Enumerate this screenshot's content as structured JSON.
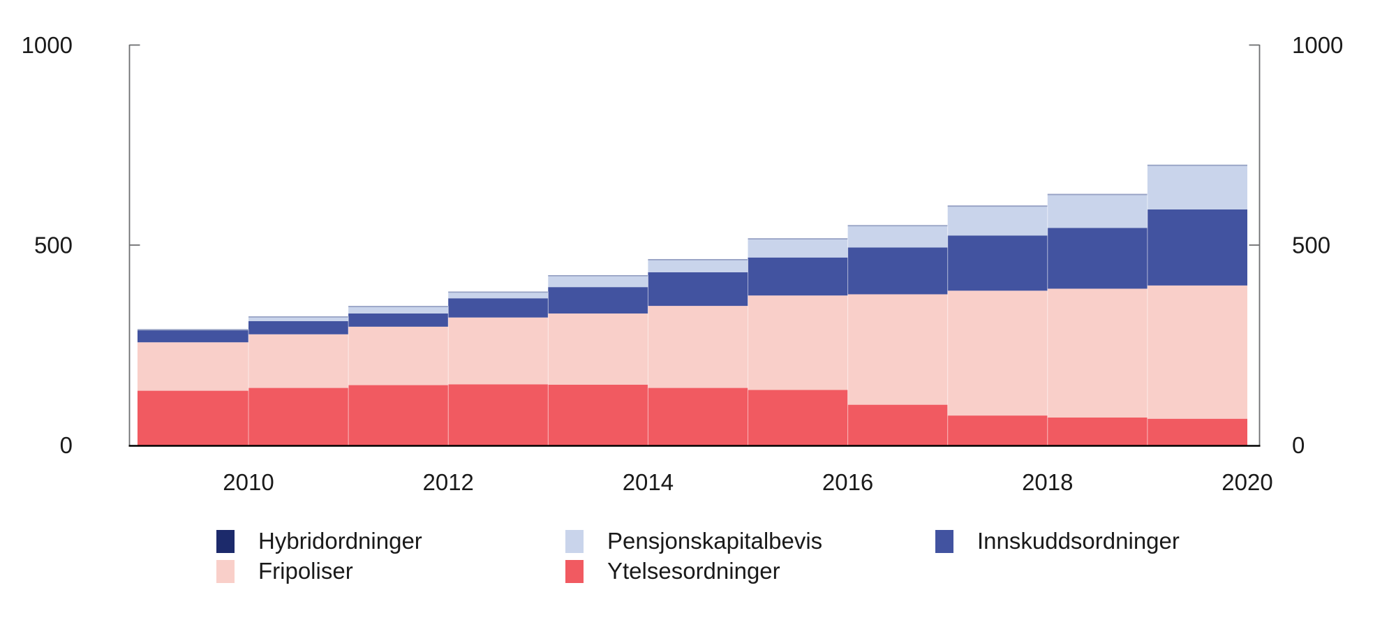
{
  "chart_data": {
    "type": "area",
    "step": true,
    "stacked": true,
    "title": "",
    "xlabel": "",
    "ylabel": "",
    "x": [
      2010,
      2011,
      2012,
      2013,
      2014,
      2015,
      2016,
      2017,
      2018,
      2019,
      2020
    ],
    "x_tick_labels": [
      "2010",
      "2012",
      "2014",
      "2016",
      "2018",
      "2020"
    ],
    "ylim": [
      0,
      1000
    ],
    "yticks": [
      0,
      500,
      1000
    ],
    "ytick_labels": [
      "0",
      "500",
      "1000"
    ],
    "y_axis_sides": "both",
    "grid": false,
    "legend_position": "bottom",
    "series": [
      {
        "name": "Ytelsesordninger",
        "color": "#F15A61",
        "values": [
          136,
          143,
          150,
          152,
          151,
          143,
          138,
          101,
          74,
          69,
          66
        ]
      },
      {
        "name": "Fripoliser",
        "color": "#F9CFC9",
        "values": [
          121,
          134,
          146,
          167,
          178,
          205,
          236,
          276,
          312,
          322,
          333
        ]
      },
      {
        "name": "Innskuddsordninger",
        "color": "#4253A0",
        "values": [
          30,
          33,
          33,
          48,
          66,
          84,
          95,
          117,
          138,
          152,
          190
        ]
      },
      {
        "name": "Pensjonskapitalbevis",
        "color": "#C9D4EB",
        "values": [
          3,
          12,
          19,
          17,
          30,
          33,
          48,
          56,
          75,
          85,
          112
        ]
      },
      {
        "name": "Hybridordninger",
        "color": "#1C2A6B",
        "values": [
          0,
          0,
          0,
          0,
          0,
          0,
          0,
          0,
          0,
          0,
          0
        ]
      }
    ],
    "totals": [
      290,
      322,
      348,
      384,
      425,
      465,
      517,
      550,
      599,
      628,
      701
    ]
  },
  "legend": {
    "items": [
      {
        "label": "Hybridordninger",
        "color": "#1C2A6B"
      },
      {
        "label": "Pensjonskapitalbevis",
        "color": "#C9D4EB"
      },
      {
        "label": "Innskuddsordninger",
        "color": "#4253A0"
      },
      {
        "label": "Fripoliser",
        "color": "#F9CFC9"
      },
      {
        "label": "Ytelsesordninger",
        "color": "#F15A61"
      }
    ]
  },
  "colors": {
    "background": "#ffffff",
    "axis": "#6d6e70",
    "baseline": "#000000",
    "text": "#1a1a1a",
    "area_top_edge": "#8e99bd",
    "segment_seam": "#ffffff"
  }
}
